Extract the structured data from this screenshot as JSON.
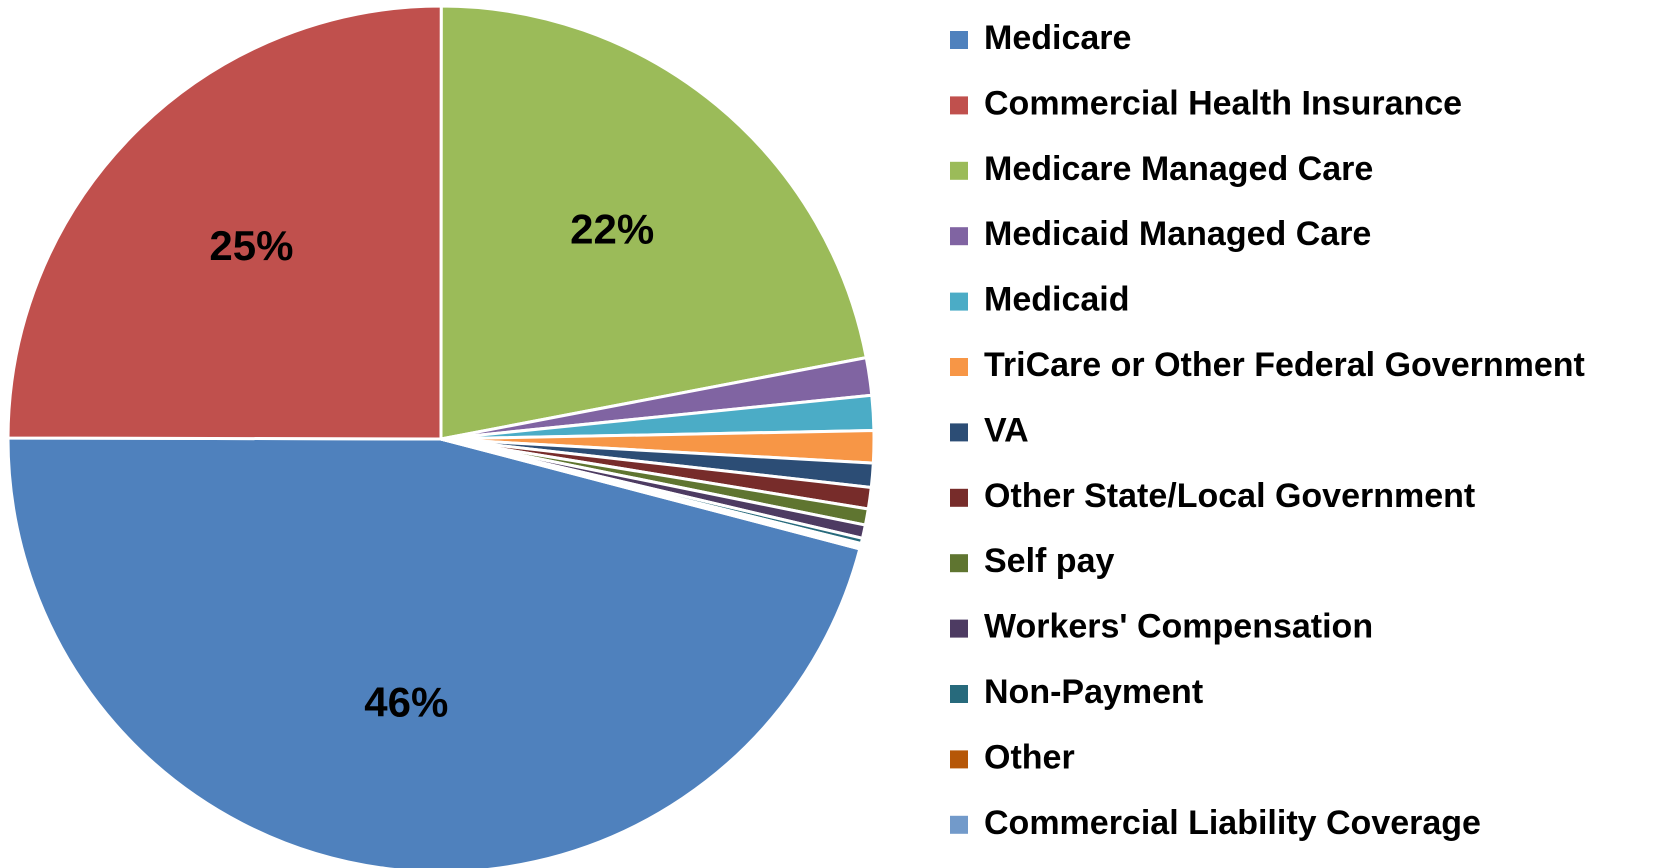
{
  "chart_data": {
    "type": "pie",
    "categories": [
      "Medicare",
      "Commercial Health Insurance",
      "Medicare Managed Care",
      "Medicaid Managed Care",
      "Medicaid",
      "TriCare or Other Federal Government",
      "VA",
      "Other State/Local Government",
      "Self pay",
      "Workers' Compensation",
      "Non-Payment",
      "Other",
      "Commercial Liability Coverage"
    ],
    "values": [
      46,
      25,
      22,
      1.4,
      1.3,
      1.2,
      0.9,
      0.8,
      0.6,
      0.5,
      0.2,
      0.1,
      0.1
    ],
    "value_labels": [
      "46%",
      "25%",
      "22%",
      null,
      null,
      null,
      null,
      null,
      null,
      null,
      null,
      null,
      null
    ],
    "colors": [
      "#4f81bd",
      "#c0504d",
      "#9bbb59",
      "#8064a2",
      "#4bacc6",
      "#f79646",
      "#2c4d75",
      "#772c2a",
      "#5f7530",
      "#4d3b62",
      "#276a7c",
      "#b65708",
      "#729aca"
    ],
    "legend": "right"
  }
}
